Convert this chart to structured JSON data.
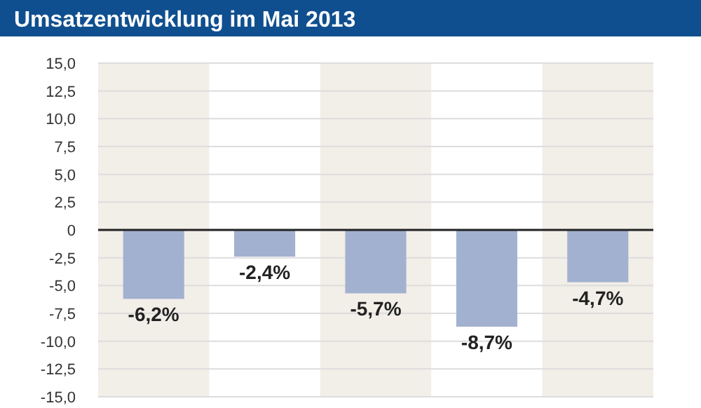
{
  "chart_data": {
    "type": "bar",
    "title": "Umsatzentwicklung im Mai 2013",
    "categories": [
      null,
      null,
      null,
      null,
      null
    ],
    "values": [
      -6.2,
      -2.4,
      -5.7,
      -8.7,
      -4.7
    ],
    "value_labels": [
      "-6,2%",
      "-2,4%",
      "-5,7%",
      "-8,7%",
      "-4,7%"
    ],
    "color": "#a3b1d0",
    "ylim": [
      -15,
      15
    ],
    "yticks": [
      {
        "value": 15,
        "label": "15,0"
      },
      {
        "value": 12.5,
        "label": "12,5"
      },
      {
        "value": 10,
        "label": "10,0"
      },
      {
        "value": 7.5,
        "label": "7,5"
      },
      {
        "value": 5,
        "label": "5,0"
      },
      {
        "value": 2.5,
        "label": "2,5"
      },
      0,
      {
        "value": -2.5,
        "label": "-2,5"
      },
      {
        "value": -5,
        "label": "-5,0"
      },
      {
        "value": -7.5,
        "label": "-7,5"
      },
      {
        "value": -10,
        "label": "-10,0"
      },
      {
        "value": -12.5,
        "label": "-12,5"
      },
      {
        "value": -15,
        "label": "-15,0"
      }
    ],
    "grid": "y"
  }
}
